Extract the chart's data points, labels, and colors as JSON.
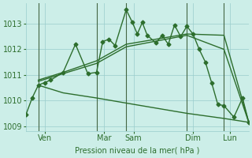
{
  "bg_color": "#cceee8",
  "grid_color": "#99cccc",
  "line_color": "#2d6e2d",
  "xlabel": "Pression niveau de la mer( hPa )",
  "ylim": [
    1008.8,
    1013.8
  ],
  "yticks": [
    1009,
    1010,
    1011,
    1012,
    1013
  ],
  "xlim": [
    0,
    180
  ],
  "xtick_labels": [
    "Ven",
    "Mar",
    "Sam",
    "Dim",
    "Lun"
  ],
  "xtick_pos": [
    15,
    63,
    87,
    135,
    165
  ],
  "vlines": [
    10,
    57,
    81,
    130,
    160
  ],
  "line1_x": [
    0,
    5,
    10,
    15,
    20,
    30,
    40,
    50,
    57,
    62,
    67,
    72,
    81,
    86,
    90,
    94,
    98,
    105,
    110,
    115,
    120,
    125,
    130,
    135,
    140,
    145,
    150,
    155,
    160,
    168,
    175,
    180
  ],
  "line1_y": [
    1009.45,
    1010.1,
    1010.6,
    1010.7,
    1010.8,
    1011.1,
    1012.2,
    1011.05,
    1011.1,
    1012.3,
    1012.4,
    1012.15,
    1013.55,
    1013.05,
    1012.6,
    1013.05,
    1012.55,
    1012.25,
    1012.55,
    1012.2,
    1012.95,
    1012.5,
    1012.9,
    1012.6,
    1012.0,
    1011.5,
    1010.7,
    1009.85,
    1009.8,
    1009.35,
    1010.1,
    1009.15
  ],
  "line2_x": [
    10,
    30,
    57,
    81,
    130,
    160,
    180
  ],
  "line2_y": [
    1010.8,
    1011.1,
    1011.55,
    1012.2,
    1012.6,
    1012.55,
    1009.15
  ],
  "line3_x": [
    10,
    30,
    57,
    81,
    130,
    160,
    180
  ],
  "line3_y": [
    1010.75,
    1011.05,
    1011.45,
    1012.1,
    1012.55,
    1012.0,
    1009.15
  ],
  "line4_x": [
    10,
    30,
    57,
    81,
    130,
    160,
    180
  ],
  "line4_y": [
    1010.6,
    1010.3,
    1010.1,
    1009.9,
    1009.5,
    1009.3,
    1009.15
  ],
  "marker_size": 2.5,
  "linewidth": 1.0
}
